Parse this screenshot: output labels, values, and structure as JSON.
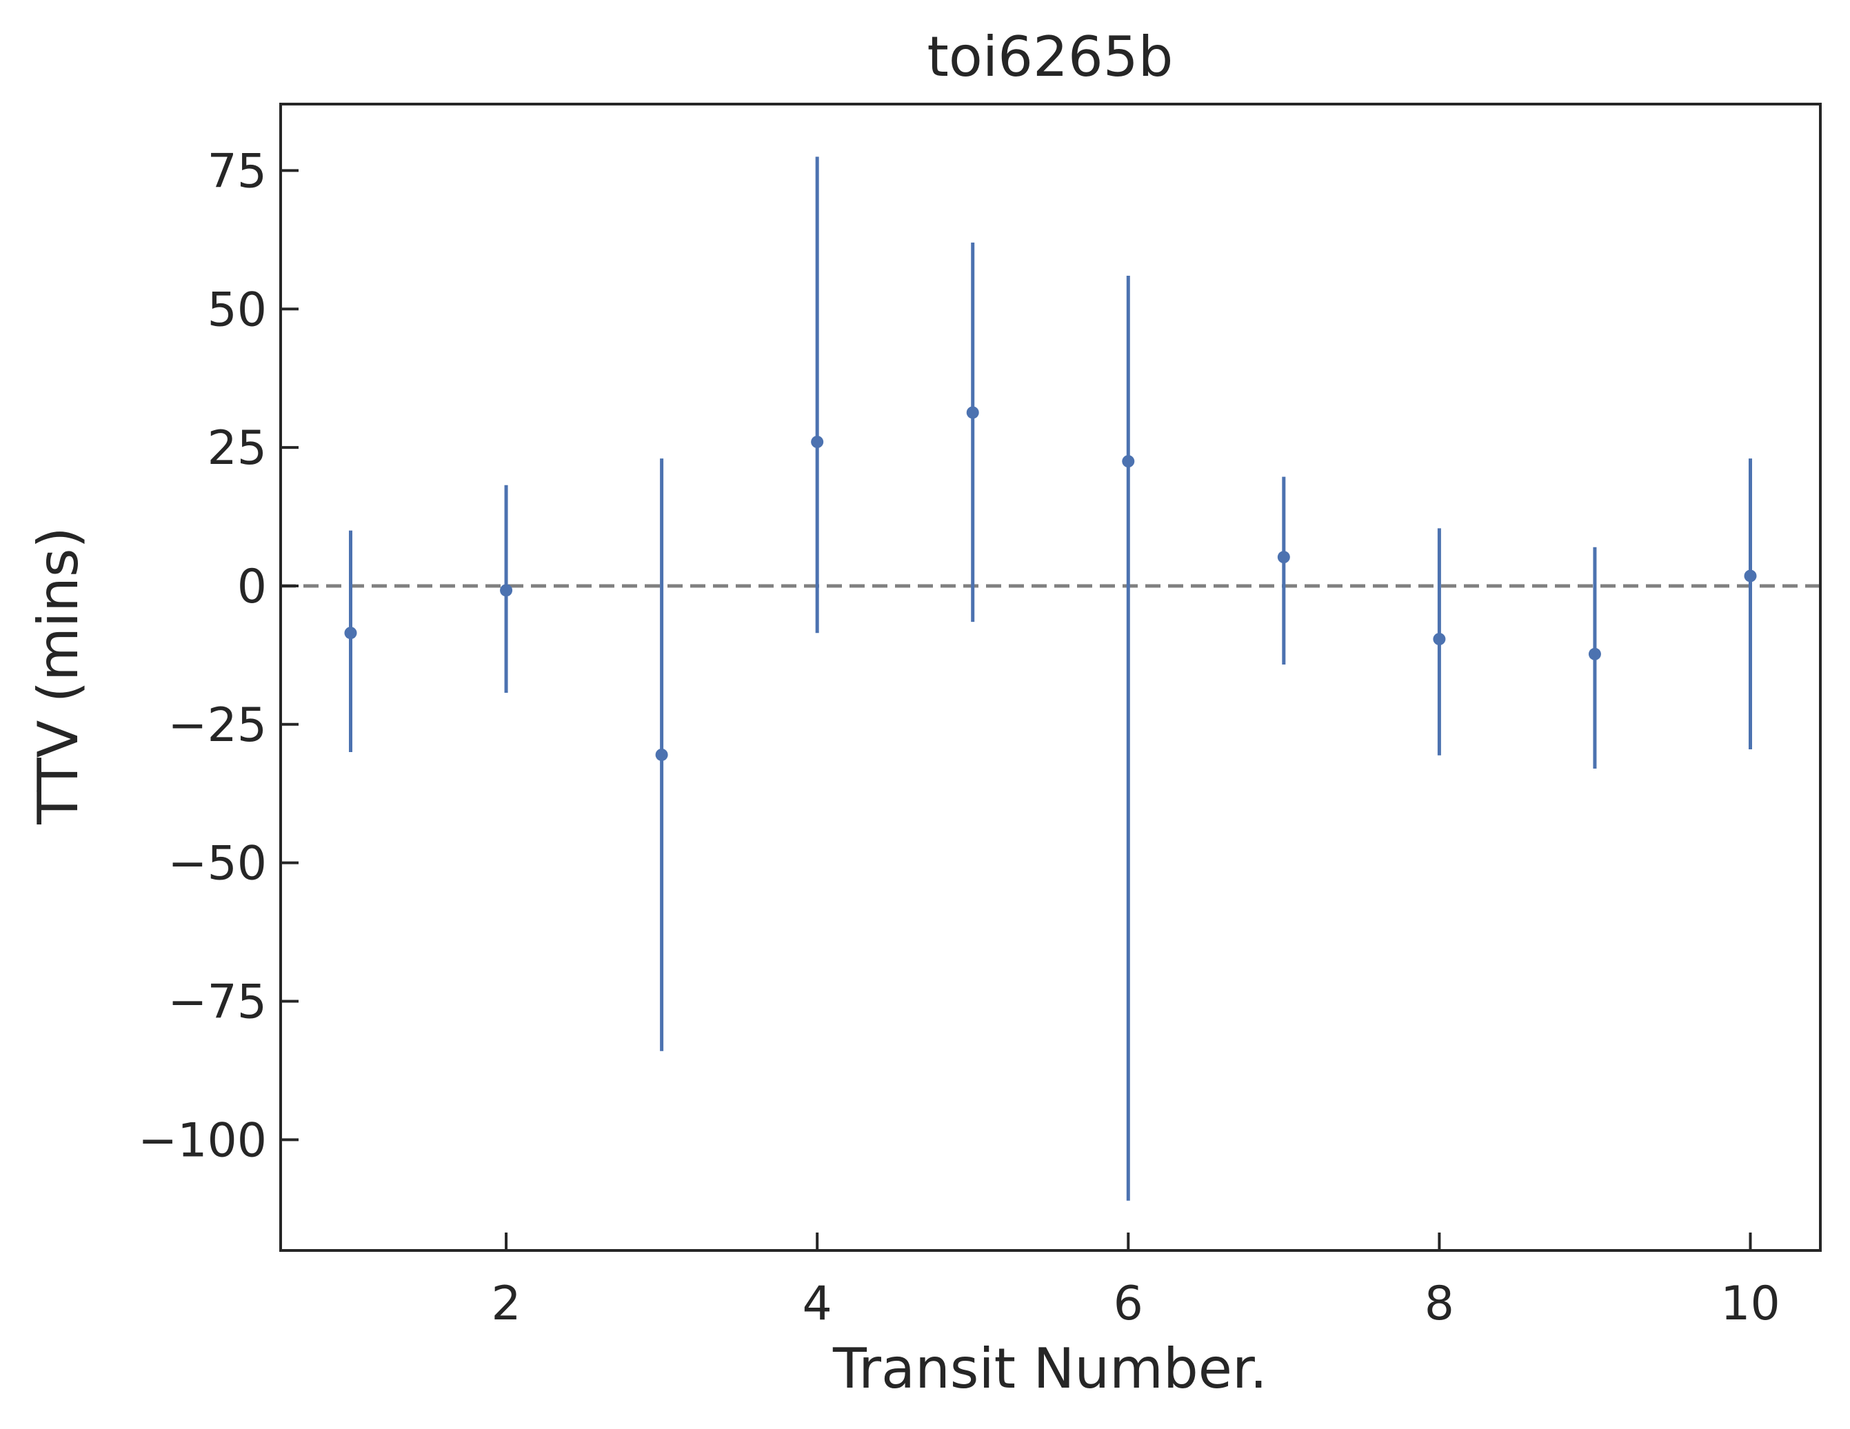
{
  "chart_data": {
    "type": "scatter",
    "title": "toi6265b",
    "xlabel": "Transit Number.",
    "ylabel": "TTV (mins)",
    "xlim": [
      0.55,
      10.45
    ],
    "ylim": [
      -120,
      87
    ],
    "xticks": [
      2,
      4,
      6,
      8,
      10
    ],
    "xtick_labels": [
      "2",
      "4",
      "6",
      "8",
      "10"
    ],
    "yticks": [
      75,
      50,
      25,
      0,
      -25,
      -50,
      -75,
      -100
    ],
    "ytick_labels": [
      "75",
      "50",
      "25",
      "0",
      "−25",
      "−50",
      "−75",
      "−100"
    ],
    "reference_line": {
      "y": 0,
      "style": "dashed",
      "color": "#808080"
    },
    "series": [
      {
        "color": "#4c72b0",
        "points": [
          {
            "x": 1,
            "y": -8.5,
            "err_low": 21.5,
            "err_high": 18.5
          },
          {
            "x": 2,
            "y": -0.8,
            "err_low": 18.5,
            "err_high": 19.0
          },
          {
            "x": 3,
            "y": -30.5,
            "err_low": 53.5,
            "err_high": 53.5
          },
          {
            "x": 4,
            "y": 26.0,
            "err_low": 34.5,
            "err_high": 51.5
          },
          {
            "x": 5,
            "y": 31.3,
            "err_low": 37.8,
            "err_high": 30.7
          },
          {
            "x": 6,
            "y": 22.5,
            "err_low": 133.5,
            "err_high": 33.5
          },
          {
            "x": 7,
            "y": 5.2,
            "err_low": 19.4,
            "err_high": 14.5
          },
          {
            "x": 8,
            "y": -9.6,
            "err_low": 21.0,
            "err_high": 20.0
          },
          {
            "x": 9,
            "y": -12.3,
            "err_low": 20.7,
            "err_high": 19.3
          },
          {
            "x": 10,
            "y": 1.8,
            "err_low": 31.3,
            "err_high": 21.2
          }
        ]
      }
    ],
    "grid": false,
    "legend": "none"
  }
}
